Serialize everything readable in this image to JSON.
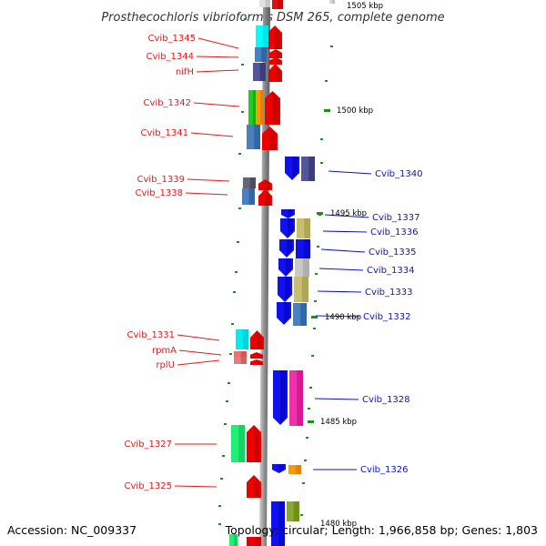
{
  "title": "Prosthecochloris vibrioformis DSM 265, complete genome",
  "footer": {
    "accession": "Accession: NC_009337",
    "summary": "Topology: circular; Length: 1,966,858 bp; Genes: 1,803"
  },
  "colors": {
    "forward_label": "#e41a1c",
    "reverse_label": "#0a14c8",
    "backbone": "#808080",
    "tick": "#228b22"
  },
  "scale_labels": [
    "1505 kbp",
    "1500 kbp",
    "1495 kbp",
    "1490 kbp",
    "1485 kbp",
    "1480 kbp"
  ],
  "forward_genes": [
    "Cvib_1345",
    "Cvib_1344",
    "nifH",
    "Cvib_1342",
    "Cvib_1341",
    "Cvib_1339",
    "Cvib_1338",
    "Cvib_1331",
    "rpmA",
    "rplU",
    "Cvib_1327",
    "Cvib_1325"
  ],
  "reverse_genes": [
    "Cvib_1340",
    "Cvib_1337",
    "Cvib_1336",
    "Cvib_1335",
    "Cvib_1334",
    "Cvib_1333",
    "Cvib_1332",
    "Cvib_1328",
    "Cvib_1326"
  ]
}
